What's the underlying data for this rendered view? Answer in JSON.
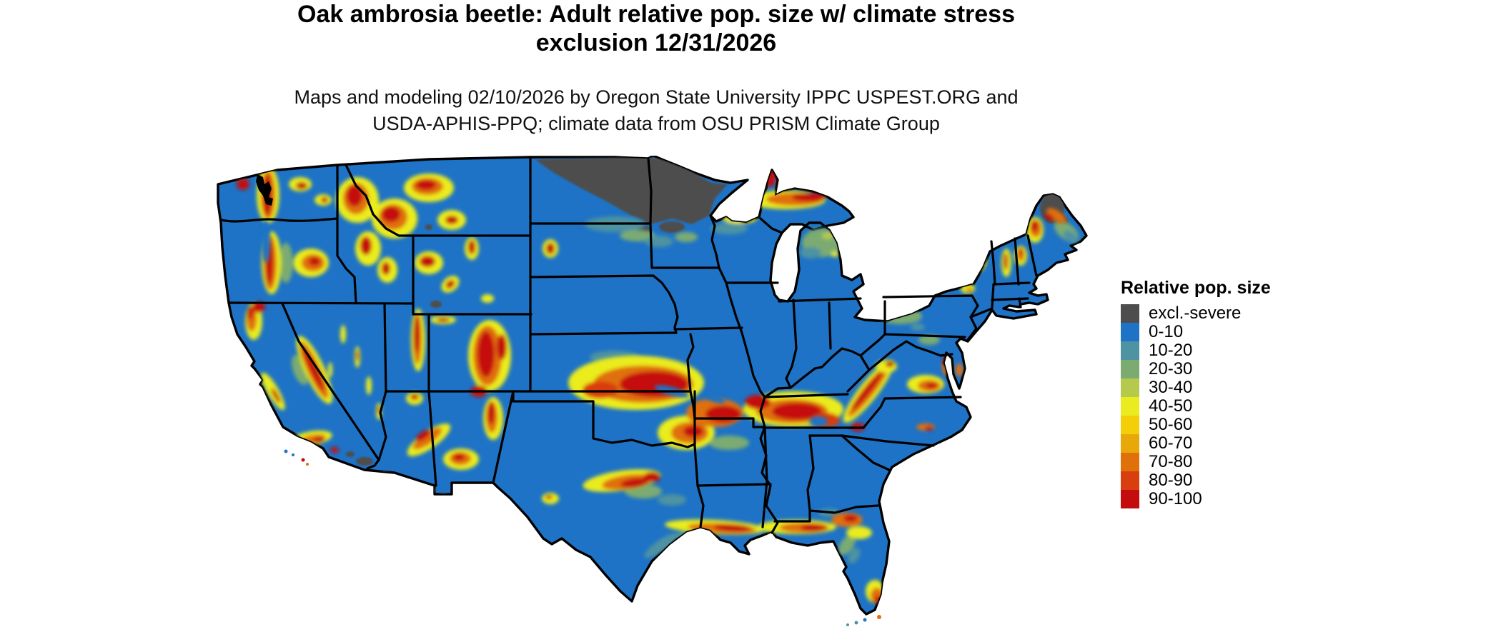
{
  "title": {
    "line1": "Oak ambrosia beetle: Adult relative pop. size w/ climate stress",
    "line2": "exclusion 12/31/2026"
  },
  "subtitle": {
    "line1": "Maps and modeling 02/10/2026 by Oregon State University IPPC USPEST.ORG and",
    "line2": "USDA-APHIS-PPQ; climate data from OSU PRISM Climate Group"
  },
  "legend": {
    "title": "Relative pop. size",
    "items": [
      {
        "label": "excl.-severe",
        "color": "#4d4d4d"
      },
      {
        "label": "0-10",
        "color": "#1e73c6"
      },
      {
        "label": "10-20",
        "color": "#4e93a2"
      },
      {
        "label": "20-30",
        "color": "#7cab72"
      },
      {
        "label": "30-40",
        "color": "#b5c94c"
      },
      {
        "label": "40-50",
        "color": "#eaec1f"
      },
      {
        "label": "50-60",
        "color": "#f3cf0a"
      },
      {
        "label": "60-70",
        "color": "#e9a80a"
      },
      {
        "label": "70-80",
        "color": "#e0700a"
      },
      {
        "label": "80-90",
        "color": "#d93e0e"
      },
      {
        "label": "90-100",
        "color": "#c50c0c"
      }
    ]
  },
  "map": {
    "kind": "raster choropleth of contiguous United States",
    "base_color": "#1e73c6",
    "state_border_color": "#000000",
    "background_color": "#ffffff",
    "regions": [
      {
        "area": "Northern Minnesota and northeastern North Dakota",
        "value": "excl.-severe"
      },
      {
        "area": "Northern Maine",
        "value": "excl.-severe"
      },
      {
        "area": "Mojave / southern Arizona deserts",
        "value": "excl.-severe"
      },
      {
        "area": "Most lowland areas nationwide",
        "value": "0-10"
      },
      {
        "area": "Western mountain ranges (Cascades, Sierra Nevada, Rockies, Wasatch, Mogollon Rim)",
        "value": "50-100"
      },
      {
        "area": "Central Kansas through Missouri band",
        "value": "60-100"
      },
      {
        "area": "Kentucky-Tennessee band and southern Appalachians",
        "value": "60-100"
      },
      {
        "area": "Gulf Coast strip from Texas to Florida panhandle",
        "value": "60-90"
      },
      {
        "area": "Lake Superior shore / Upper Peninsula of Michigan",
        "value": "70-100"
      },
      {
        "area": "Adirondacks and northern New England",
        "value": "70-100"
      },
      {
        "area": "Southern tip of Florida",
        "value": "60-90"
      }
    ]
  }
}
